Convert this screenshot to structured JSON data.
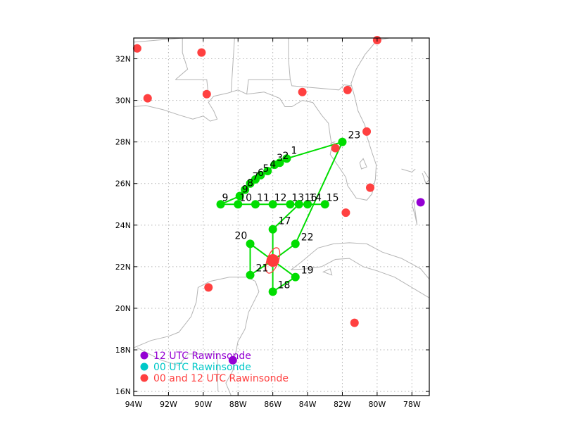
{
  "map": {
    "lon_range": [
      -94,
      -77
    ],
    "lat_range": [
      15.8,
      33.0
    ],
    "x_ticks": [
      {
        "lon": -94,
        "label": "94W"
      },
      {
        "lon": -92,
        "label": "92W"
      },
      {
        "lon": -90,
        "label": "90W"
      },
      {
        "lon": -88,
        "label": "88W"
      },
      {
        "lon": -86,
        "label": "86W"
      },
      {
        "lon": -84,
        "label": "84W"
      },
      {
        "lon": -82,
        "label": "82W"
      },
      {
        "lon": -80,
        "label": "80W"
      },
      {
        "lon": -78,
        "label": "78W"
      }
    ],
    "y_ticks": [
      {
        "lat": 16,
        "label": "16N"
      },
      {
        "lat": 18,
        "label": "18N"
      },
      {
        "lat": 20,
        "label": "20N"
      },
      {
        "lat": 22,
        "label": "22N"
      },
      {
        "lat": 24,
        "label": "24N"
      },
      {
        "lat": 26,
        "label": "26N"
      },
      {
        "lat": 28,
        "label": "28N"
      },
      {
        "lat": 30,
        "label": "30N"
      },
      {
        "lat": 32,
        "label": "32N"
      }
    ],
    "grid": true,
    "colors": {
      "coast": "#b4b4b4",
      "grid": "#b4b4b4",
      "track": "#00dd00",
      "waypoint": "#00dd00",
      "storm": "#ff3b3b",
      "rawinsonde_00_12": "#ff4040",
      "rawinsonde_12": "#9400d3",
      "rawinsonde_00": "#00c8c8"
    }
  },
  "storm_center": {
    "lon": -86.0,
    "lat": 22.3
  },
  "waypoints": [
    {
      "id": "1",
      "lon": -85.2,
      "lat": 27.2
    },
    {
      "id": "2",
      "lon": -85.6,
      "lat": 27.0
    },
    {
      "id": "3",
      "lon": -85.9,
      "lat": 26.9
    },
    {
      "id": "4",
      "lon": -86.3,
      "lat": 26.6
    },
    {
      "id": "5",
      "lon": -86.7,
      "lat": 26.4
    },
    {
      "id": "6",
      "lon": -87.0,
      "lat": 26.2
    },
    {
      "id": "7",
      "lon": -87.3,
      "lat": 26.0
    },
    {
      "id": "8",
      "lon": -87.6,
      "lat": 25.7
    },
    {
      "id": "9",
      "lon": -87.9,
      "lat": 25.4
    },
    {
      "id": "9",
      "lon": -89.0,
      "lat": 25.0
    },
    {
      "id": "10",
      "lon": -88.0,
      "lat": 25.0
    },
    {
      "id": "11",
      "lon": -87.0,
      "lat": 25.0
    },
    {
      "id": "12",
      "lon": -86.0,
      "lat": 25.0
    },
    {
      "id": "13",
      "lon": -85.0,
      "lat": 25.0
    },
    {
      "id": "14",
      "lon": -84.0,
      "lat": 25.0
    },
    {
      "id": "15",
      "lon": -83.0,
      "lat": 25.0
    },
    {
      "id": "16",
      "lon": -84.5,
      "lat": 25.0
    },
    {
      "id": "17",
      "lon": -86.0,
      "lat": 23.8
    },
    {
      "id": "18",
      "lon": -86.0,
      "lat": 20.8
    },
    {
      "id": "19",
      "lon": -84.7,
      "lat": 21.5
    },
    {
      "id": "20",
      "lon": -87.3,
      "lat": 23.1
    },
    {
      "id": "21",
      "lon": -87.3,
      "lat": 21.6
    },
    {
      "id": "22",
      "lon": -84.7,
      "lat": 23.1
    },
    {
      "id": "23",
      "lon": -82.0,
      "lat": 28.0
    }
  ],
  "rawinsondes_00_12": [
    {
      "lon": -93.8,
      "lat": 32.5
    },
    {
      "lon": -90.1,
      "lat": 32.3
    },
    {
      "lon": -93.2,
      "lat": 30.1
    },
    {
      "lon": -89.8,
      "lat": 30.3
    },
    {
      "lon": -84.3,
      "lat": 30.4
    },
    {
      "lon": -81.7,
      "lat": 30.5
    },
    {
      "lon": -80.0,
      "lat": 32.9
    },
    {
      "lon": -80.6,
      "lat": 28.5
    },
    {
      "lon": -82.4,
      "lat": 27.7
    },
    {
      "lon": -80.4,
      "lat": 25.8
    },
    {
      "lon": -81.8,
      "lat": 24.6
    },
    {
      "lon": -89.7,
      "lat": 21.0
    },
    {
      "lon": -81.3,
      "lat": 19.3
    }
  ],
  "rawinsondes_12": [
    {
      "lon": -77.5,
      "lat": 25.1
    },
    {
      "lon": -88.3,
      "lat": 17.5
    }
  ],
  "legend": [
    {
      "label": "12 UTC Rawinsonde",
      "color": "#9400d3"
    },
    {
      "label": "00 UTC Rawinsonde",
      "color": "#00c8c8"
    },
    {
      "label": "00 and 12 UTC Rawinsonde",
      "color": "#ff4040"
    }
  ]
}
